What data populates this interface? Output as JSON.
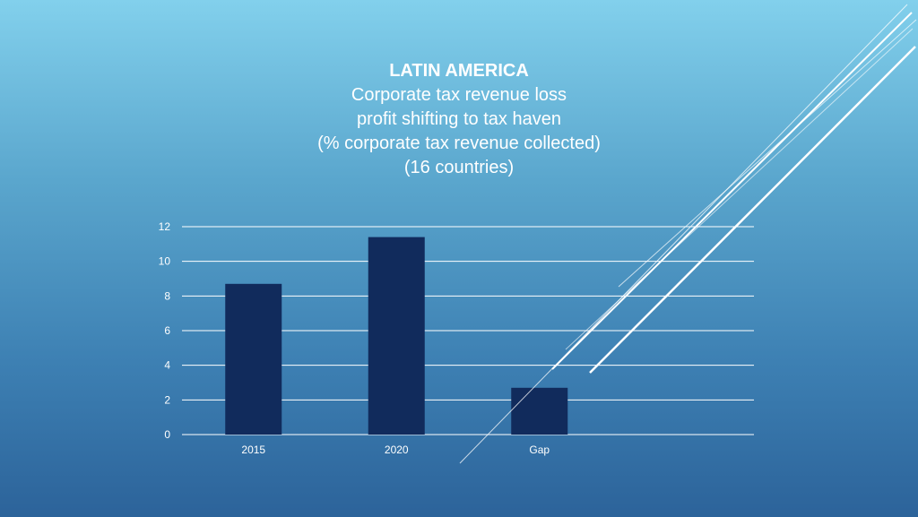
{
  "title_lines": {
    "heading": "LATIN AMERICA",
    "line2": "Corporate tax revenue loss",
    "line3": "profit shifting to tax haven",
    "line4": "(% corporate tax revenue collected)",
    "line5": "(16 countries)"
  },
  "colors": {
    "bar": "#112b5c",
    "grid": "#ffffff",
    "text": "#ffffff"
  },
  "chart_data": {
    "type": "bar",
    "title": "LATIN AMERICA Corporate tax revenue loss profit shifting to tax haven (% corporate tax revenue collected) (16 countries)",
    "categories": [
      "2015",
      "2020",
      "Gap"
    ],
    "values": [
      8.7,
      11.4,
      2.7
    ],
    "xlabel": "",
    "ylabel": "",
    "ylim": [
      0,
      12
    ],
    "yticks": [
      0,
      2,
      4,
      6,
      8,
      10,
      12
    ],
    "grid": true,
    "legend": "none"
  }
}
